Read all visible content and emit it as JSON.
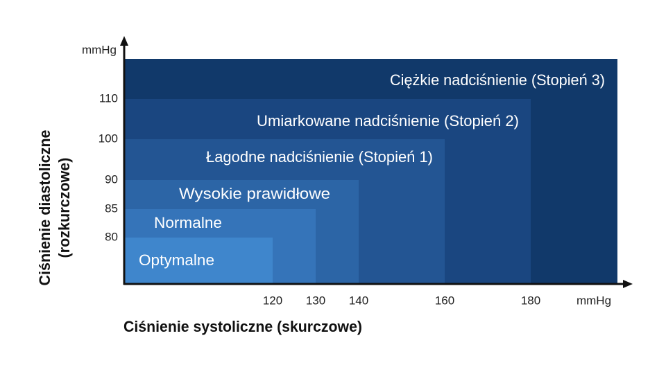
{
  "y_axis": {
    "unit": "mmHg",
    "title_lines": [
      "Ciśnienie diastoliczne",
      "(rozkurczowe)"
    ],
    "ticks": [
      "110",
      "100",
      "90",
      "85",
      "80"
    ]
  },
  "x_axis": {
    "unit": "mmHg",
    "title": "Ciśnienie systoliczne (skurczowe)",
    "ticks": [
      "120",
      "130",
      "140",
      "160",
      "180"
    ]
  },
  "zones": [
    "Optymalne",
    "Normalne",
    "Wysokie prawidłowe",
    "Łagodne nadciśnienie (Stopień 1)",
    "Umiarkowane nadciśnienie (Stopień 2)",
    "Ciężkie nadciśnienie (Stopień 3)"
  ]
}
